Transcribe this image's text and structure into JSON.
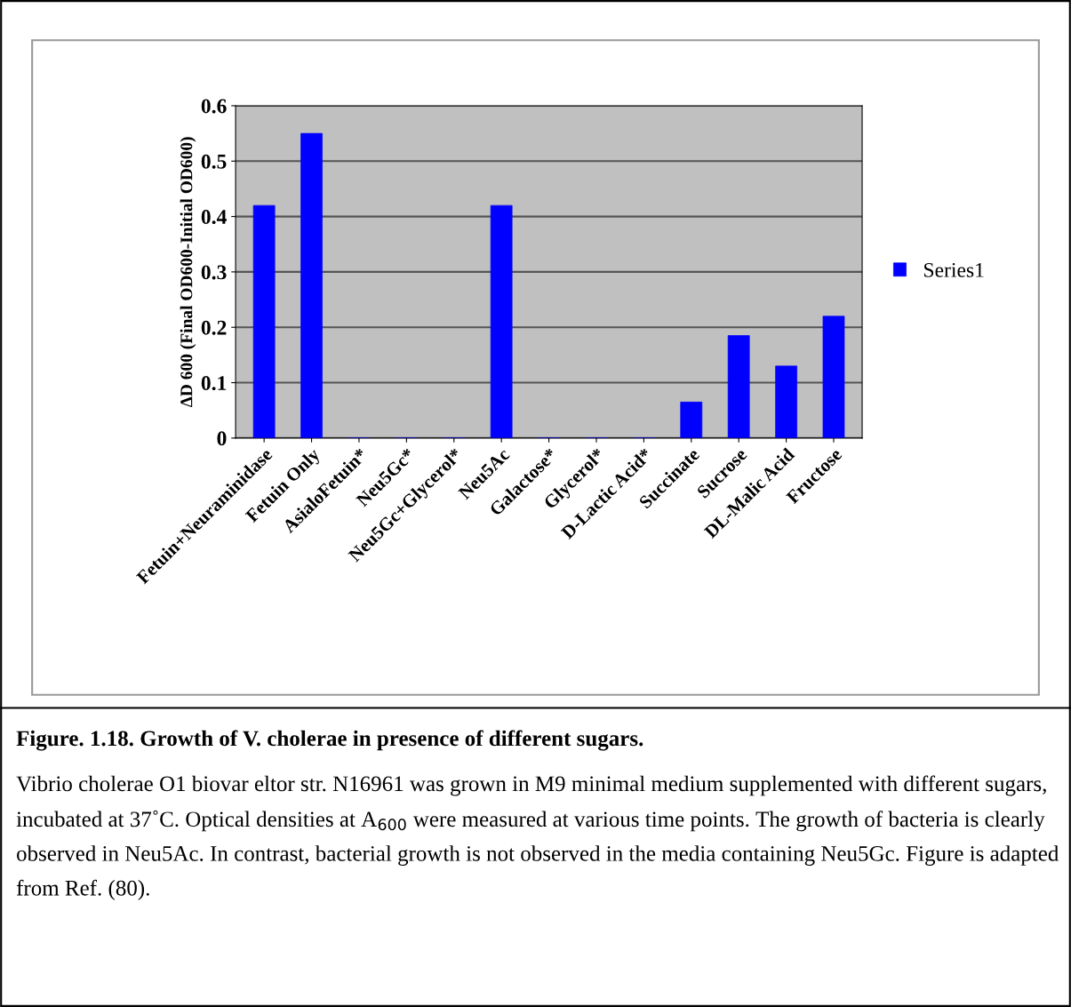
{
  "chart_data": {
    "type": "bar",
    "ylabel": "ΔD 600 (Final OD600-Initial OD600)",
    "categories": [
      "Fetuin+Neuraminidase",
      "Fetuin Only",
      "AsialoFetuin*",
      "Neu5Gc*",
      "Neu5Gc+Glycerol*",
      "Neu5Ac",
      "Galactose*",
      "Glycerol*",
      "D-Lactic Acid*",
      "Succinate",
      "Sucrose",
      "DL-Malic Acid",
      "Fructose"
    ],
    "series": [
      {
        "name": "Series1",
        "color": "#0000ff",
        "values": [
          0.42,
          0.55,
          0,
          0,
          0,
          0.42,
          0,
          0,
          0,
          0.065,
          0.185,
          0.13,
          0.22
        ]
      }
    ],
    "ylim": [
      0,
      0.6
    ],
    "yticks": [
      0,
      0.1,
      0.2,
      0.3,
      0.4,
      0.5,
      0.6
    ],
    "grid": "y",
    "legend": "right",
    "annotations": [
      "Figure. 1.18. Growth of V. cholerae in presence of different sugars.",
      "Vibrio cholerae O1 biovar eltor str. N16961 was grown in M9 minimal medium supplemented with different sugars, incubated at 37˚C. Optical densities at A$_{600}$ were measured at various time points. The growth of bacteria is clearly observed in Neu5Ac. In contrast, bacterial growth is not observed in the media containing Neu5Gc. Figure is adapted from Ref. (80)."
    ]
  }
}
